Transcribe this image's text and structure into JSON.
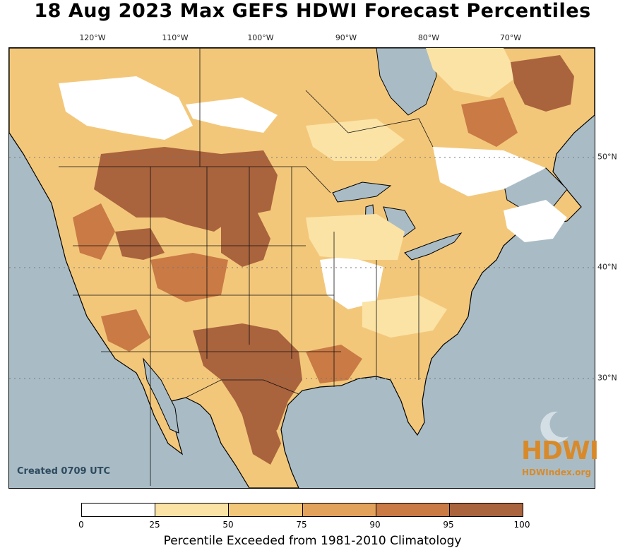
{
  "title": "18 Aug 2023 Max GEFS HDWI Forecast Percentiles",
  "created_label": "Created 0709 UTC",
  "logo": {
    "text": "HDWI",
    "url": "HDWIndex.org"
  },
  "longitude_labels": [
    "120°W",
    "110°W",
    "100°W",
    "90°W",
    "80°W",
    "70°W"
  ],
  "latitude_labels": [
    "50°N",
    "40°N",
    "30°N"
  ],
  "colorbar": {
    "title": "Percentile Exceeded from 1981-2010 Climatology",
    "ticks": [
      "0",
      "25",
      "50",
      "75",
      "90",
      "95",
      "100"
    ],
    "colors": [
      "#ffffff",
      "#fbe3a6",
      "#f3c77a",
      "#e3a25c",
      "#c97a45",
      "#a9633d"
    ]
  },
  "colors": {
    "ocean": "#a9bcc6",
    "accent": "#d88a2a"
  }
}
